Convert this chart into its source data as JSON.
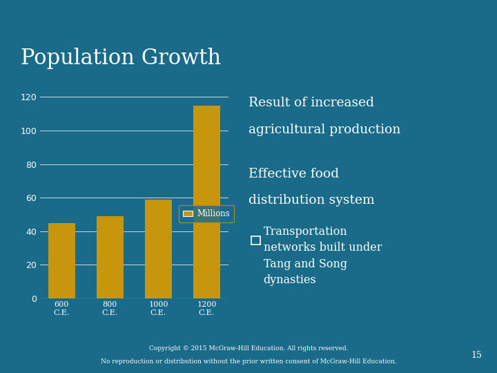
{
  "title": "Population Growth",
  "bg_color": "#1a6b8a",
  "bar_color": "#c8960c",
  "bar_values": [
    45,
    49,
    59,
    115
  ],
  "bar_labels": [
    "600\nC.E.",
    "800\nC.E.",
    "1000\nC.E.",
    "1200\nC.E."
  ],
  "ylim": [
    0,
    120
  ],
  "yticks": [
    0,
    20,
    40,
    60,
    80,
    100,
    120
  ],
  "legend_label": "Millions",
  "title_color": "#ffffff",
  "title_fontsize": 22,
  "accent_color": "#b8960c",
  "text_color": "#ffffff",
  "bullet1_line1": "Result of increased",
  "bullet1_line2": "agricultural production",
  "bullet2_line1": "Effective food",
  "bullet2_line2": "distribution system",
  "sub_line1": "Transportation",
  "sub_line2": "networks built under",
  "sub_line3": "Tang and Song",
  "sub_line4": "dynasties",
  "footer1": "Copyright © 2015 McGraw-Hill Education. All rights reserved.",
  "footer2": "No reproduction or distribution without the prior written consent of McGraw-Hill Education.",
  "page_num": "15"
}
